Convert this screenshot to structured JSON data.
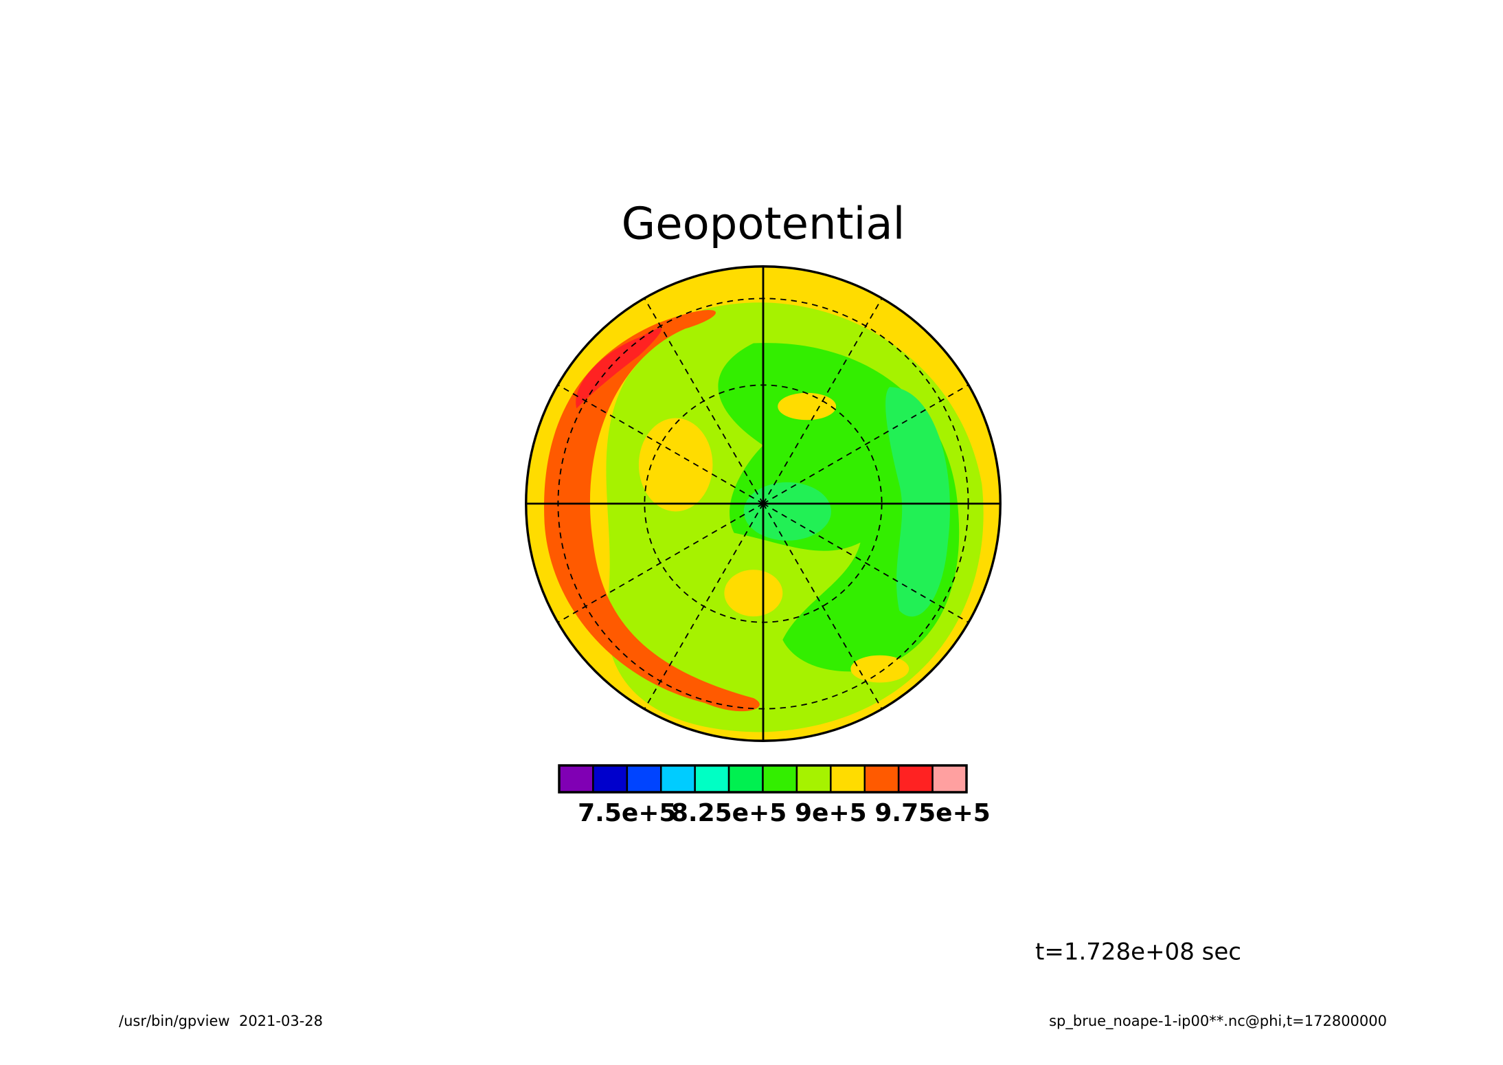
{
  "chart_data": {
    "type": "contour",
    "title": "Geopotential",
    "bins": [
      700000,
      725000,
      750000,
      775000,
      800000,
      825000,
      850000,
      875000,
      900000,
      925000,
      950000,
      975000,
      1000000
    ],
    "colors": [
      "#8000b4",
      "#0000cc",
      "#0044ff",
      "#00ccff",
      "#00ffc4",
      "#00f050",
      "#33ee00",
      "#a6f200",
      "#ffdc00",
      "#ff5a00",
      "#ff2222",
      "#ffa0a0"
    ],
    "xlim": [
      700000,
      1000000
    ],
    "xticks": [
      {
        "value": 750000,
        "label": "7.5e+5"
      },
      {
        "value": 825000,
        "label": "8.25e+5"
      },
      {
        "value": 900000,
        "label": "9e+5"
      },
      {
        "value": 975000,
        "label": "9.75e+5"
      }
    ],
    "annotations": [
      "t=1.728e+08 sec",
      "/usr/bin/gpview  2021-03-28",
      "sp_brue_noape-1-ip00**.nc@phi,t=172800000"
    ]
  }
}
